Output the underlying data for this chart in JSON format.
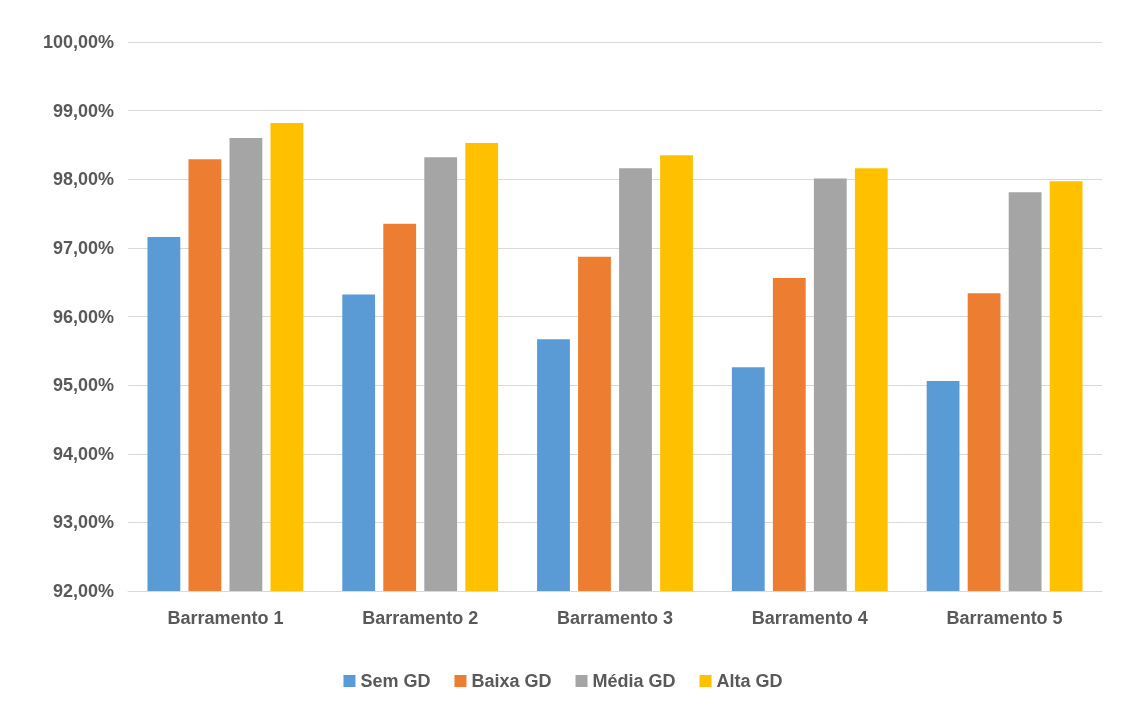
{
  "chart_data": {
    "type": "bar",
    "categories": [
      "Barramento 1",
      "Barramento 2",
      "Barramento 3",
      "Barramento 4",
      "Barramento 5"
    ],
    "series": [
      {
        "name": "Sem GD",
        "color": "#5b9bd5",
        "values": [
          97.16,
          96.32,
          95.67,
          95.26,
          95.06
        ]
      },
      {
        "name": "Baixa GD",
        "color": "#ed7d31",
        "values": [
          98.29,
          97.35,
          96.87,
          96.56,
          96.34
        ]
      },
      {
        "name": "Média GD",
        "color": "#a5a5a5",
        "values": [
          98.6,
          98.32,
          98.16,
          98.01,
          97.81
        ]
      },
      {
        "name": "Alta GD",
        "color": "#ffc000",
        "values": [
          98.82,
          98.53,
          98.35,
          98.16,
          97.97
        ]
      }
    ],
    "ylim": [
      92,
      100
    ],
    "yticks": [
      {
        "value": 92,
        "label": "92,00%"
      },
      {
        "value": 93,
        "label": "93,00%"
      },
      {
        "value": 94,
        "label": "94,00%"
      },
      {
        "value": 95,
        "label": "95,00%"
      },
      {
        "value": 96,
        "label": "96,00%"
      },
      {
        "value": 97,
        "label": "97,00%"
      },
      {
        "value": 98,
        "label": "98,00%"
      },
      {
        "value": 99,
        "label": "99,00%"
      },
      {
        "value": 100,
        "label": "100,00%"
      }
    ],
    "grid": "y",
    "legend": "bottom"
  }
}
